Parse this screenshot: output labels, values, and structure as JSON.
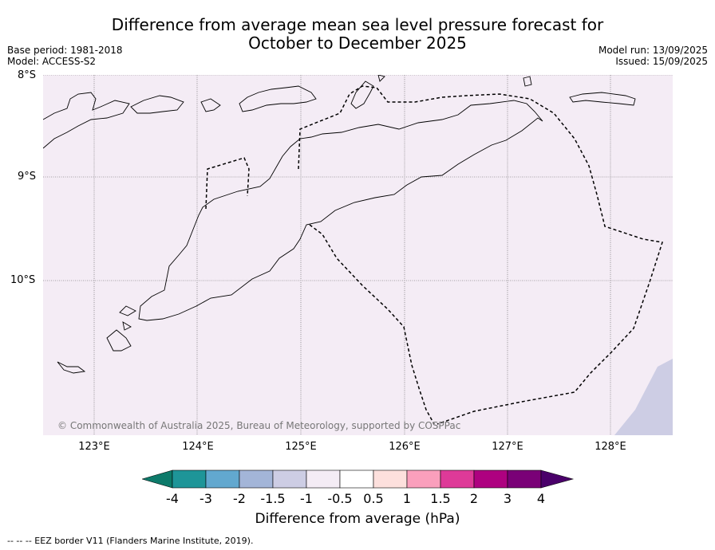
{
  "title_line1": "Difference from average mean sea level pressure forecast for",
  "title_line2": "October to December 2025",
  "base_period": "Base period: 1981-2018",
  "model": "Model: ACCESS-S2",
  "model_run": "Model run: 13/09/2025",
  "issued": "Issued: 15/09/2025",
  "lat_labels": [
    "8°S",
    "9°S",
    "10°S"
  ],
  "lon_labels": [
    "123°E",
    "124°E",
    "125°E",
    "126°E",
    "127°E",
    "128°E"
  ],
  "copyright": "© Commonwealth of Australia 2025, Bureau of Meteorology, supported by COSPPac",
  "colorbar": {
    "title": "Difference from average (hPa)",
    "labels": [
      "-4",
      "-3",
      "-2",
      "-1.5",
      "-1",
      "-0.5",
      "0.5",
      "1",
      "1.5",
      "2",
      "3",
      "4"
    ],
    "colors": [
      "#0d7a6a",
      "#1e9598",
      "#62a8cf",
      "#a3b5d8",
      "#cdcde4",
      "#f4ecf5",
      "#ffffff",
      "#fde0dd",
      "#fa9fbc",
      "#de3a98",
      "#ae0180",
      "#7a0177",
      "#4a006a"
    ],
    "map_fill_color": "#f4ecf5",
    "map_low_color": "#cdcde4"
  },
  "footnote": "--  --  -- EEZ border V11 (Flanders Marine Institute, 2019)."
}
